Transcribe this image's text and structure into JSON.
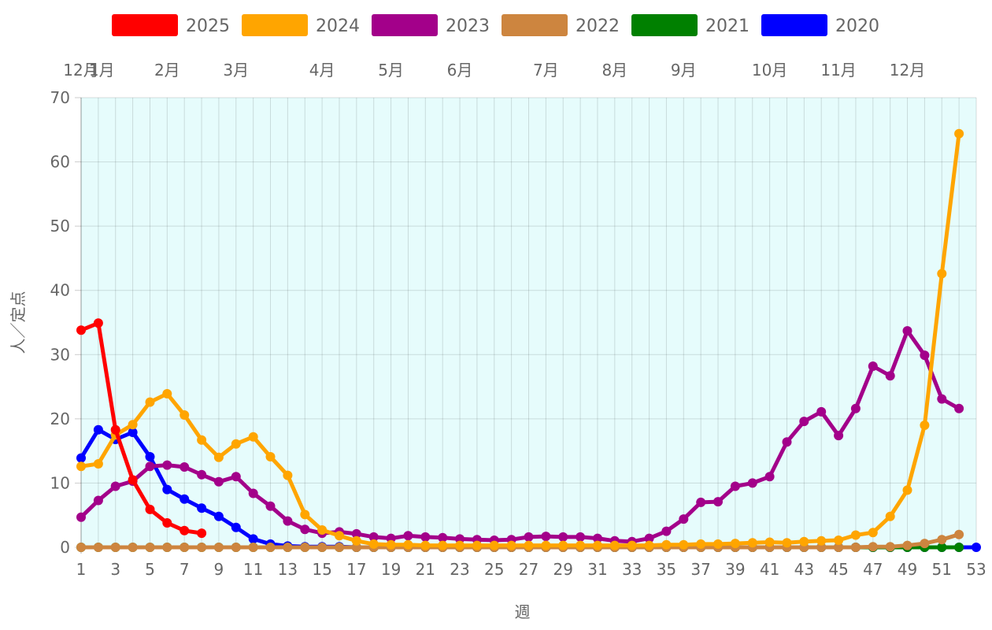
{
  "chart_data": {
    "type": "line",
    "xlabel": "週",
    "ylabel": "人／定点",
    "ylim": [
      0,
      70
    ],
    "xlim": [
      1,
      53
    ],
    "yticks": [
      0,
      10,
      20,
      30,
      40,
      50,
      60,
      70
    ],
    "xticks": [
      1,
      3,
      5,
      7,
      9,
      11,
      13,
      15,
      17,
      19,
      21,
      23,
      25,
      27,
      29,
      31,
      33,
      35,
      37,
      39,
      41,
      43,
      45,
      47,
      49,
      51,
      53
    ],
    "month_labels": [
      {
        "label": "12月",
        "week": 1
      },
      {
        "label": "1月",
        "week": 2.2
      },
      {
        "label": "2月",
        "week": 6
      },
      {
        "label": "3月",
        "week": 10
      },
      {
        "label": "4月",
        "week": 15
      },
      {
        "label": "5月",
        "week": 19
      },
      {
        "label": "6月",
        "week": 23
      },
      {
        "label": "7月",
        "week": 28
      },
      {
        "label": "8月",
        "week": 32
      },
      {
        "label": "9月",
        "week": 36
      },
      {
        "label": "10月",
        "week": 41
      },
      {
        "label": "11月",
        "week": 45
      },
      {
        "label": "12月",
        "week": 49
      }
    ],
    "grid": true,
    "legend_position": "top",
    "plot_background": "#e6fcfc",
    "series": [
      {
        "name": "2025",
        "color": "#ff0000",
        "start_week": 1,
        "values": [
          33.8,
          34.9,
          18.3,
          10.5,
          5.9,
          3.8,
          2.6,
          2.2
        ]
      },
      {
        "name": "2024",
        "color": "#ffa500",
        "start_week": 1,
        "values": [
          12.6,
          13.0,
          17.5,
          19.1,
          22.6,
          23.9,
          20.6,
          16.7,
          14.0,
          16.1,
          17.2,
          14.1,
          11.2,
          5.1,
          2.7,
          1.8,
          1.0,
          0.5,
          0.4,
          0.4,
          0.3,
          0.3,
          0.3,
          0.3,
          0.3,
          0.3,
          0.3,
          0.3,
          0.3,
          0.3,
          0.3,
          0.3,
          0.3,
          0.3,
          0.4,
          0.4,
          0.5,
          0.5,
          0.6,
          0.7,
          0.8,
          0.7,
          0.9,
          1.0,
          1.1,
          1.9,
          2.3,
          4.8,
          8.9,
          19.0,
          42.6,
          64.4
        ]
      },
      {
        "name": "2023",
        "color": "#a3008a",
        "start_week": 1,
        "values": [
          4.7,
          7.3,
          9.5,
          10.3,
          12.6,
          12.8,
          12.5,
          11.3,
          10.2,
          11.0,
          8.4,
          6.4,
          4.1,
          2.8,
          2.2,
          2.4,
          2.1,
          1.6,
          1.4,
          1.8,
          1.6,
          1.5,
          1.3,
          1.2,
          1.1,
          1.2,
          1.6,
          1.7,
          1.6,
          1.6,
          1.4,
          1.0,
          0.9,
          1.4,
          2.5,
          4.4,
          7.0,
          7.1,
          9.5,
          10.0,
          11.0,
          16.4,
          19.6,
          21.1,
          17.4,
          21.6,
          28.2,
          26.7,
          33.7,
          29.9,
          23.1,
          21.6
        ]
      },
      {
        "name": "2022",
        "color": "#cd853f",
        "start_week": 1,
        "values": [
          0,
          0,
          0,
          0,
          0,
          0,
          0,
          0,
          0,
          0,
          0,
          0,
          0,
          0,
          0,
          0,
          0,
          0,
          0,
          0,
          0,
          0,
          0,
          0,
          0,
          0,
          0,
          0,
          0,
          0,
          0,
          0,
          0,
          0,
          0,
          0,
          0,
          0,
          0,
          0,
          0,
          0,
          0,
          0,
          0,
          0,
          0.1,
          0.1,
          0.3,
          0.6,
          1.2,
          2.0
        ]
      },
      {
        "name": "2021",
        "color": "#008000",
        "start_week": 1,
        "values": [
          0,
          0,
          0,
          0,
          0,
          0,
          0,
          0,
          0,
          0,
          0,
          0,
          0,
          0,
          0,
          0,
          0,
          0,
          0,
          0,
          0,
          0,
          0,
          0,
          0,
          0,
          0,
          0,
          0,
          0,
          0,
          0,
          0,
          0,
          0,
          0,
          0,
          0,
          0,
          0,
          0,
          0,
          0,
          0,
          0,
          0,
          0,
          0,
          0,
          0,
          0,
          0
        ]
      },
      {
        "name": "2020",
        "color": "#0000ff",
        "start_week": 1,
        "values": [
          13.9,
          18.3,
          16.8,
          17.9,
          14.1,
          9.0,
          7.5,
          6.1,
          4.8,
          3.1,
          1.3,
          0.5,
          0.2,
          0.1,
          0.1,
          0.1,
          0,
          0,
          0,
          0,
          0,
          0,
          0,
          0,
          0,
          0,
          0,
          0,
          0,
          0,
          0,
          0,
          0,
          0,
          0,
          0,
          0,
          0,
          0,
          0,
          0,
          0,
          0,
          0,
          0,
          0,
          0,
          0,
          0,
          0,
          0,
          0,
          0
        ]
      }
    ]
  }
}
